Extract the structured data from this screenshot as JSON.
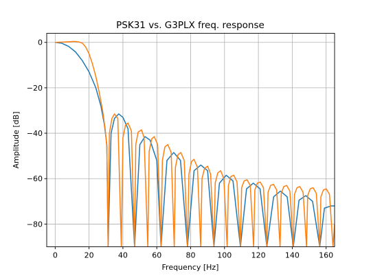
{
  "chart_data": {
    "type": "line",
    "title": "PSK31 vs. G3PLX freq. response",
    "xlabel": "Frequency [Hz]",
    "ylabel": "Amplitude [dB]",
    "xlim": [
      -5,
      165
    ],
    "ylim": [
      -90,
      4
    ],
    "xticks": [
      0,
      20,
      40,
      60,
      80,
      100,
      120,
      140,
      160
    ],
    "yticks": [
      0,
      -20,
      -40,
      -60,
      -80
    ],
    "xtick_labels": [
      "0",
      "20",
      "40",
      "60",
      "80",
      "100",
      "120",
      "140",
      "160"
    ],
    "ytick_labels": [
      "0",
      "−20",
      "−40",
      "−60",
      "−80"
    ],
    "grid": true,
    "legend": false,
    "series": [
      {
        "color": "#1f77b4",
        "x": [
          0,
          4,
          8,
          12,
          16,
          20,
          24,
          27,
          29,
          30.5,
          31.25,
          33,
          35,
          37.5,
          40,
          43,
          46.875,
          50,
          53,
          56,
          60,
          62.5,
          66,
          70,
          74,
          78.125,
          82,
          86,
          90,
          93.75,
          97,
          101,
          105,
          109.375,
          113,
          117,
          121,
          125,
          129,
          133,
          137,
          140.625,
          144,
          148,
          152,
          156.25,
          159,
          163,
          165
        ],
        "y": [
          0,
          -0.4,
          -1.8,
          -4.2,
          -8,
          -13,
          -20,
          -28,
          -36,
          -45,
          -90,
          -40,
          -33.5,
          -31.5,
          -33,
          -38,
          -90,
          -45,
          -41.5,
          -43,
          -52,
          -90,
          -52,
          -48.5,
          -52,
          -90,
          -56.5,
          -54,
          -56.5,
          -90,
          -62,
          -58.5,
          -61,
          -90,
          -64.5,
          -62,
          -64.5,
          -90,
          -68,
          -65.5,
          -68,
          -90,
          -69.5,
          -67.5,
          -70,
          -90,
          -73,
          -72,
          -72
        ]
      },
      {
        "color": "#ff7f0e",
        "x": [
          0,
          4,
          8,
          11,
          14,
          16,
          18,
          20,
          22,
          24,
          26,
          28,
          29.5,
          30.5,
          31.25,
          32,
          33.5,
          35,
          37,
          39.06,
          40,
          41.5,
          43,
          45,
          46.875,
          47.6,
          49,
          51,
          52.5,
          54.69,
          55.5,
          57,
          58.5,
          60.5,
          62.5,
          63.3,
          64.8,
          66.5,
          68.5,
          70.31,
          71,
          72.5,
          74.2,
          76.2,
          78.125,
          79,
          80.5,
          82,
          84,
          85.94,
          86.7,
          88.2,
          90,
          91.8,
          93.75,
          94.5,
          96,
          97.7,
          99.6,
          101.56,
          102.3,
          103.8,
          105.5,
          107.4,
          109.375,
          110.1,
          111.6,
          113.3,
          115.2,
          117.19,
          117.9,
          119.4,
          121.1,
          123,
          125,
          125.7,
          127.2,
          128.9,
          130.8,
          132.81,
          133.5,
          135,
          136.7,
          138.6,
          140.625,
          141.3,
          142.8,
          144.5,
          146.4,
          148.44,
          149.1,
          150.6,
          152.3,
          154.2,
          156.25,
          156.9,
          158.4,
          160.1,
          162,
          164.06,
          165
        ],
        "y": [
          0,
          0.1,
          0.25,
          0.4,
          0.2,
          -0.3,
          -2,
          -5,
          -9.5,
          -15,
          -22,
          -30,
          -38,
          -46,
          -90,
          -40,
          -33.5,
          -31.5,
          -33.5,
          -90,
          -42,
          -36.5,
          -35.5,
          -39,
          -90,
          -45,
          -39.5,
          -38.5,
          -42,
          -90,
          -48,
          -42.5,
          -41.5,
          -45,
          -90,
          -52,
          -46,
          -45,
          -48.5,
          -90,
          -55,
          -49.5,
          -48.5,
          -52,
          -90,
          -58,
          -52.5,
          -51.5,
          -55,
          -90,
          -60,
          -55.5,
          -54.5,
          -58,
          -90,
          -62,
          -57.5,
          -56.5,
          -60,
          -90,
          -63,
          -59,
          -58.5,
          -61.5,
          -90,
          -64,
          -61,
          -60.5,
          -63,
          -90,
          -65,
          -62,
          -61.5,
          -64,
          -90,
          -66,
          -63,
          -62.5,
          -65,
          -90,
          -66.5,
          -63.5,
          -63,
          -65.5,
          -90,
          -67,
          -64,
          -63.5,
          -66,
          -90,
          -67.5,
          -64.5,
          -64,
          -66.5,
          -90,
          -68,
          -65,
          -64.5,
          -67,
          -90,
          -80
        ]
      }
    ]
  }
}
